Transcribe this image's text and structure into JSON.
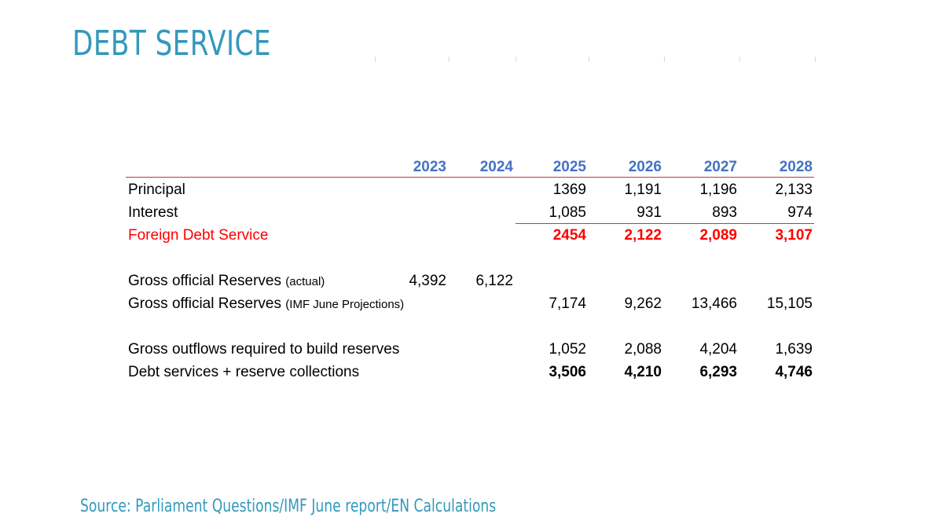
{
  "title": "DEBT SERVICE",
  "years": [
    "2023",
    "2024",
    "2025",
    "2026",
    "2027",
    "2028"
  ],
  "rows": {
    "principal": {
      "label": "Principal",
      "values": [
        "",
        "",
        "1369",
        "1,191",
        "1,196",
        "2,133"
      ]
    },
    "interest": {
      "label": "Interest",
      "values": [
        "",
        "",
        "1,085",
        "931",
        "893",
        "974"
      ]
    },
    "foreign_debt_service": {
      "label": "Foreign Debt Service",
      "values": [
        "",
        "",
        "2454",
        "2,122",
        "2,089",
        "3,107"
      ]
    },
    "reserves_actual": {
      "label": "Gross official Reserves",
      "note": "(actual)",
      "values": [
        "4,392",
        "6,122",
        "",
        "",
        "",
        ""
      ]
    },
    "reserves_imf": {
      "label": "Gross official Reserves",
      "note": "(IMF June Projections)",
      "values": [
        "",
        "",
        "7,174",
        "9,262",
        "13,466",
        "15,105"
      ]
    },
    "gross_outflows": {
      "label": "Gross outflows required to build reserves",
      "values": [
        "",
        "",
        "1,052",
        "2,088",
        "4,204",
        "1,639"
      ]
    },
    "debt_plus_reserves": {
      "label": "Debt services + reserve collections",
      "values": [
        "",
        "",
        "3,506",
        "4,210",
        "6,293",
        "4,746"
      ]
    }
  },
  "source": "Source: Parliament Questions/IMF June report/EN Calculations",
  "colors": {
    "title": "#3399bb",
    "header": "#4472c4",
    "highlight": "#ff0000",
    "rule": "#c0393b"
  }
}
